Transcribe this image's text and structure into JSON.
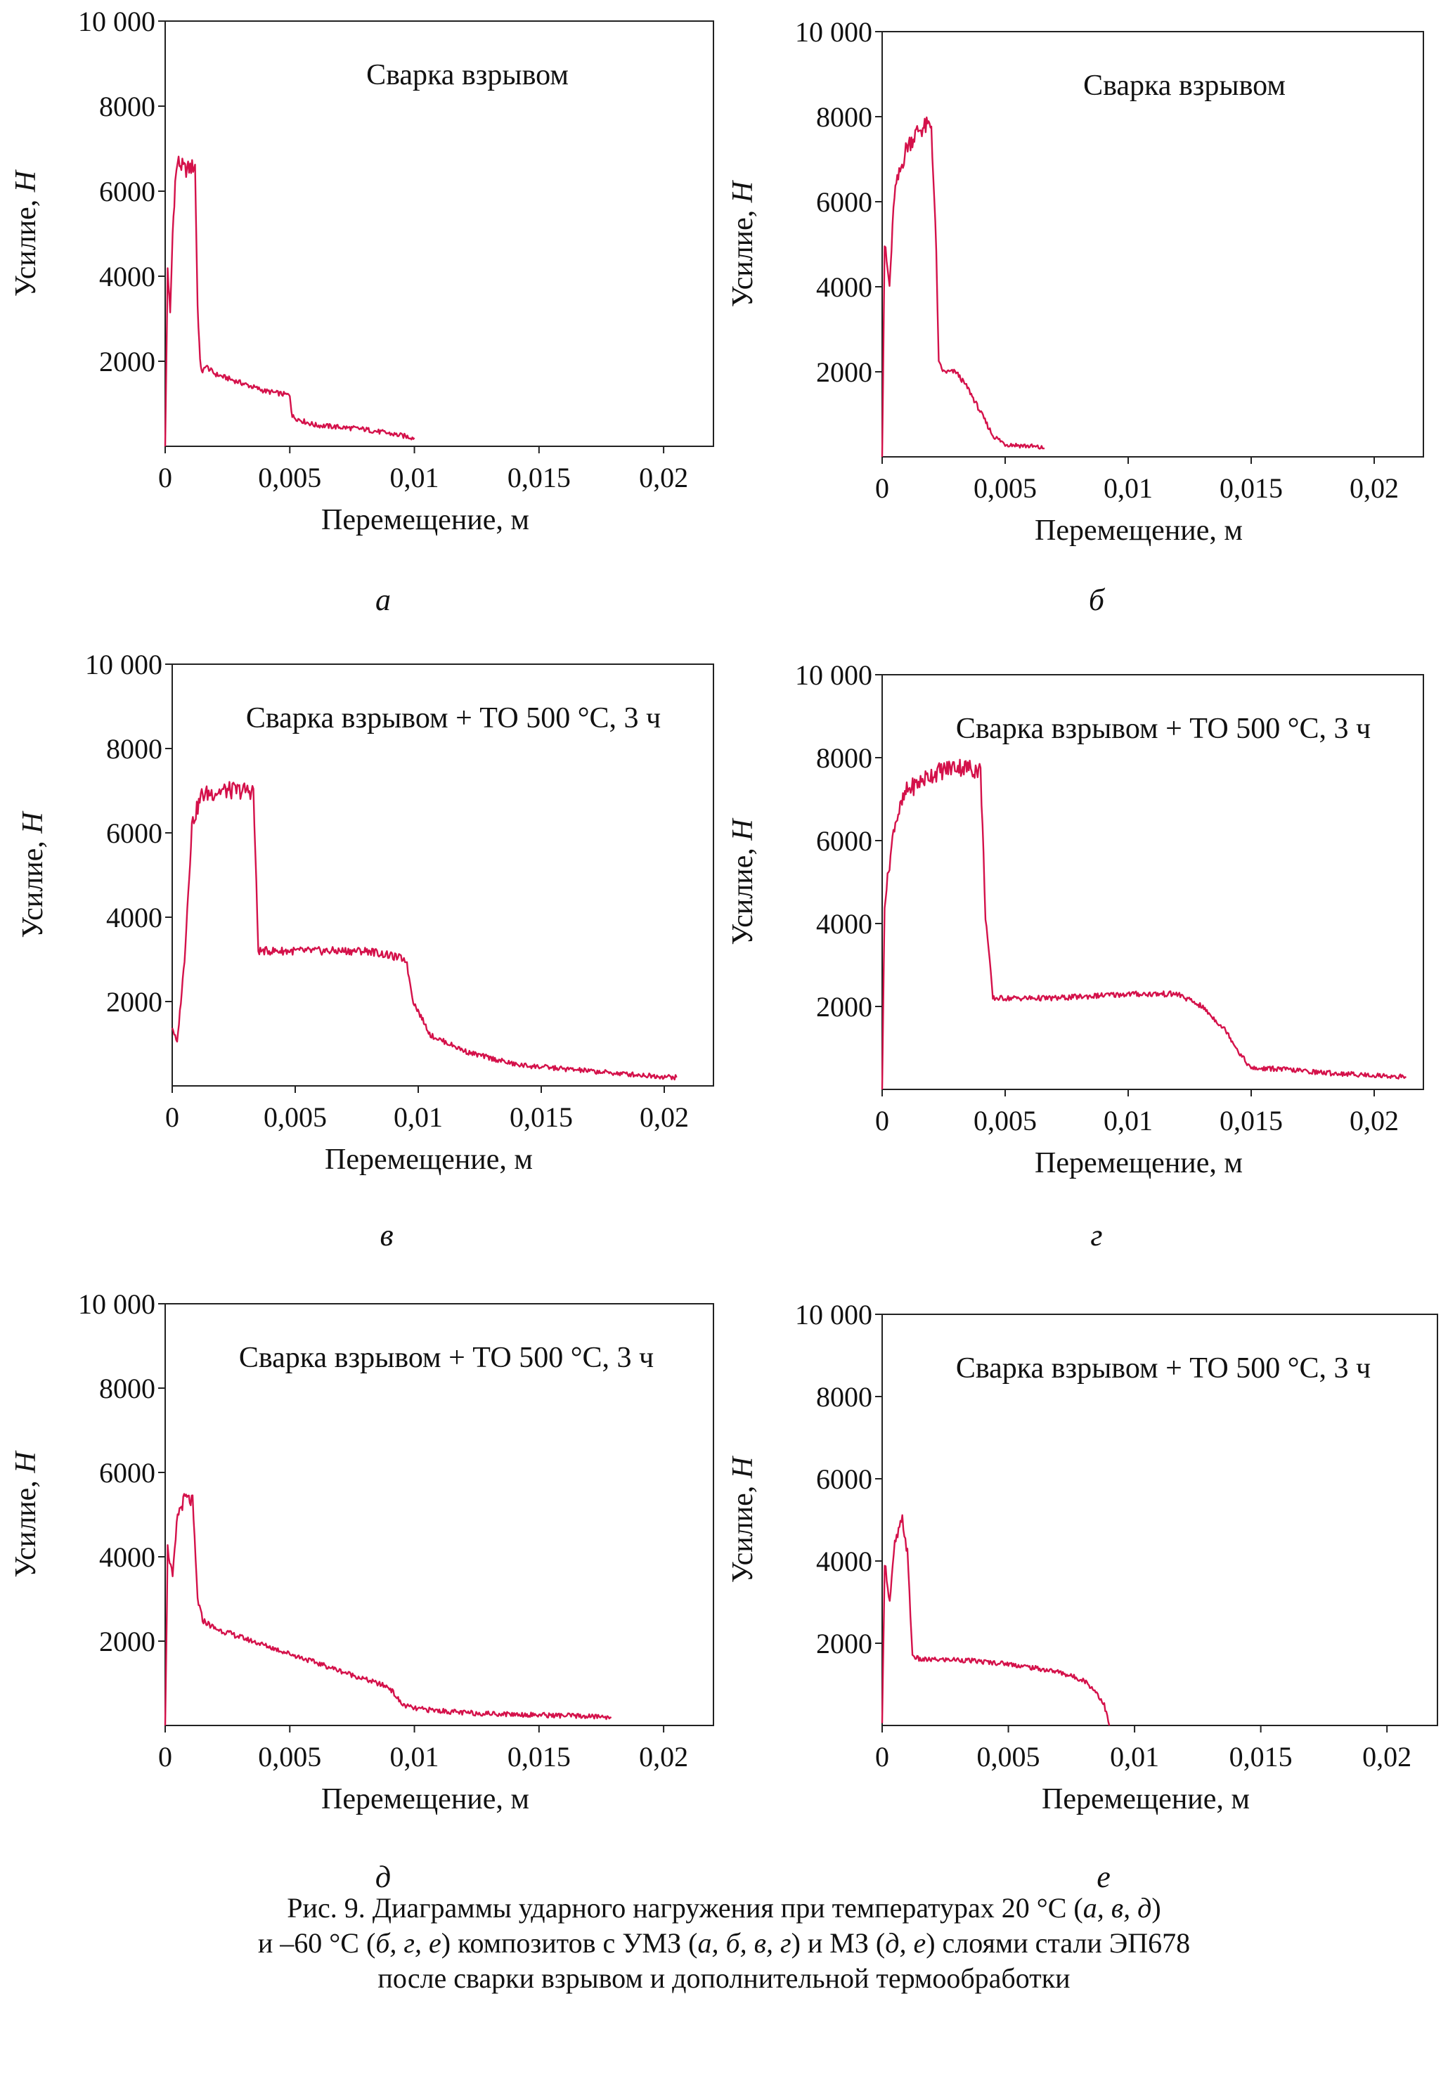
{
  "caption": {
    "line1_a": "Рис. 9. Диаграммы ударного нагружения при температурах 20 °С (",
    "line1_it": "а, в, д",
    "line1_b": ")",
    "line2_a": "и –60 °С (",
    "line2_it1": "б, г, е",
    "line2_b": ") композитов с УМЗ (",
    "line2_it2": "а, б, в, г",
    "line2_c": ") и МЗ (",
    "line2_it3": "д, е",
    "line2_d": ") слоями стали ЭП678",
    "line3": "после сварки взрывом и дополнительной термообработки"
  },
  "chart_data": [
    {
      "type": "line",
      "panel_label": "а",
      "title": "Сварка взрывом",
      "xlabel": "Перемещение, м",
      "ylabel_text": "Усилие, ",
      "ylabel_unit": "Н",
      "xlim": [
        0,
        0.022
      ],
      "ylim": [
        0,
        10000
      ],
      "x_ticks": [
        "0",
        "0,005",
        "0,01",
        "0,015",
        "0,02"
      ],
      "y_ticks": [
        "2000",
        "4000",
        "6000",
        "8000",
        "10 000"
      ],
      "color": "#d4114a",
      "series": [
        {
          "x": [
            0,
            0.0001,
            0.0002,
            0.0003,
            0.0004,
            0.0005,
            0.0008,
            0.0012,
            0.0013,
            0.0014,
            0.0015,
            0.0016,
            0.002,
            0.003,
            0.004,
            0.005,
            0.0051,
            0.0055,
            0.006,
            0.007,
            0.008,
            0.009,
            0.01
          ],
          "y": [
            0,
            4200,
            3100,
            5000,
            6200,
            6700,
            6500,
            6600,
            3300,
            2000,
            1700,
            1900,
            1700,
            1500,
            1300,
            1200,
            700,
            600,
            500,
            450,
            400,
            300,
            200
          ]
        }
      ]
    },
    {
      "type": "line",
      "panel_label": "б",
      "title": "Сварка взрывом",
      "xlabel": "Перемещение, м",
      "ylabel_text": "Усилие, ",
      "ylabel_unit": "Н",
      "xlim": [
        0,
        0.022
      ],
      "ylim": [
        0,
        10000
      ],
      "x_ticks": [
        "0",
        "0,005",
        "0,01",
        "0,015",
        "0,02"
      ],
      "y_ticks": [
        "2000",
        "4000",
        "6000",
        "8000",
        "10 000"
      ],
      "color": "#d4114a",
      "series": [
        {
          "x": [
            0,
            0.0001,
            0.0003,
            0.0005,
            0.001,
            0.0015,
            0.002,
            0.0022,
            0.0023,
            0.0025,
            0.003,
            0.0035,
            0.0045,
            0.005,
            0.006,
            0.0066
          ],
          "y": [
            0,
            5000,
            4000,
            6200,
            7300,
            7700,
            7800,
            4800,
            2200,
            2000,
            2000,
            1600,
            500,
            300,
            250,
            200
          ]
        }
      ]
    },
    {
      "type": "line",
      "panel_label": "в",
      "title": "Сварка взрывом + ТО 500 °С, 3 ч",
      "xlabel": "Перемещение, м",
      "ylabel_text": "Усилие, ",
      "ylabel_unit": "Н",
      "xlim": [
        0,
        0.022
      ],
      "ylim": [
        0,
        10000
      ],
      "x_ticks": [
        "0",
        "0,005",
        "0,01",
        "0,015",
        "0,02"
      ],
      "y_ticks": [
        "2000",
        "4000",
        "6000",
        "8000",
        "10 000"
      ],
      "color": "#d4114a",
      "series": [
        {
          "x": [
            0,
            0.0002,
            0.0005,
            0.0008,
            0.0012,
            0.002,
            0.0033,
            0.0035,
            0.0045,
            0.006,
            0.008,
            0.0095,
            0.0098,
            0.0105,
            0.012,
            0.014,
            0.016,
            0.018,
            0.0205
          ],
          "y": [
            1400,
            1000,
            3000,
            6200,
            6900,
            7000,
            7000,
            3200,
            3200,
            3200,
            3200,
            3000,
            2000,
            1200,
            800,
            500,
            400,
            300,
            200
          ]
        }
      ]
    },
    {
      "type": "line",
      "panel_label": "г",
      "title": "Сварка взрывом + ТО 500 °С, 3 ч",
      "xlabel": "Перемещение, м",
      "ylabel_text": "Усилие, ",
      "ylabel_unit": "Н",
      "xlim": [
        0,
        0.022
      ],
      "ylim": [
        0,
        10000
      ],
      "x_ticks": [
        "0",
        "0,005",
        "0,01",
        "0,015",
        "0,02"
      ],
      "y_ticks": [
        "2000",
        "4000",
        "6000",
        "8000",
        "10 000"
      ],
      "color": "#d4114a",
      "series": [
        {
          "x": [
            0,
            0.0001,
            0.0005,
            0.001,
            0.002,
            0.003,
            0.004,
            0.0042,
            0.0045,
            0.005,
            0.007,
            0.01,
            0.012,
            0.013,
            0.014,
            0.0145,
            0.015,
            0.016,
            0.018,
            0.0213
          ],
          "y": [
            0,
            4500,
            6400,
            7200,
            7600,
            7800,
            7700,
            4200,
            2200,
            2200,
            2200,
            2300,
            2300,
            2000,
            1400,
            900,
            500,
            500,
            400,
            300
          ]
        }
      ]
    },
    {
      "type": "line",
      "panel_label": "д",
      "title": "Сварка взрывом + ТО 500 °С, 3 ч",
      "xlabel": "Перемещение, м",
      "ylabel_text": "Усилие, ",
      "ylabel_unit": "Н",
      "xlim": [
        0,
        0.022
      ],
      "ylim": [
        0,
        10000
      ],
      "x_ticks": [
        "0",
        "0,005",
        "0,01",
        "0,015",
        "0,02"
      ],
      "y_ticks": [
        "2000",
        "4000",
        "6000",
        "8000",
        "10 000"
      ],
      "color": "#d4114a",
      "series": [
        {
          "x": [
            0,
            0.0001,
            0.0003,
            0.0005,
            0.0008,
            0.0011,
            0.0013,
            0.0015,
            0.002,
            0.004,
            0.006,
            0.008,
            0.009,
            0.0095,
            0.01,
            0.012,
            0.015,
            0.0179
          ],
          "y": [
            0,
            4200,
            3500,
            5000,
            5400,
            5300,
            3000,
            2500,
            2300,
            1900,
            1500,
            1100,
            900,
            500,
            400,
            300,
            250,
            200
          ]
        }
      ]
    },
    {
      "type": "line",
      "panel_label": "е",
      "title": "Сварка взрывом + ТО 500 °С, 3 ч",
      "xlabel": "Перемещение, м",
      "ylabel_text": "Усилие, ",
      "ylabel_unit": "Н",
      "xlim": [
        0,
        0.022
      ],
      "ylim": [
        0,
        10000
      ],
      "x_ticks": [
        "0",
        "0,005",
        "0,01",
        "0,015",
        "0,02"
      ],
      "y_ticks": [
        "2000",
        "4000",
        "6000",
        "8000",
        "10 000"
      ],
      "color": "#d4114a",
      "series": [
        {
          "x": [
            0,
            0.0001,
            0.0003,
            0.0005,
            0.0008,
            0.001,
            0.0012,
            0.0015,
            0.003,
            0.005,
            0.006,
            0.007,
            0.008,
            0.0085,
            0.0088,
            0.009
          ],
          "y": [
            0,
            4000,
            3000,
            4400,
            5000,
            4200,
            1700,
            1600,
            1600,
            1500,
            1400,
            1300,
            1100,
            800,
            500,
            0
          ]
        }
      ]
    }
  ]
}
